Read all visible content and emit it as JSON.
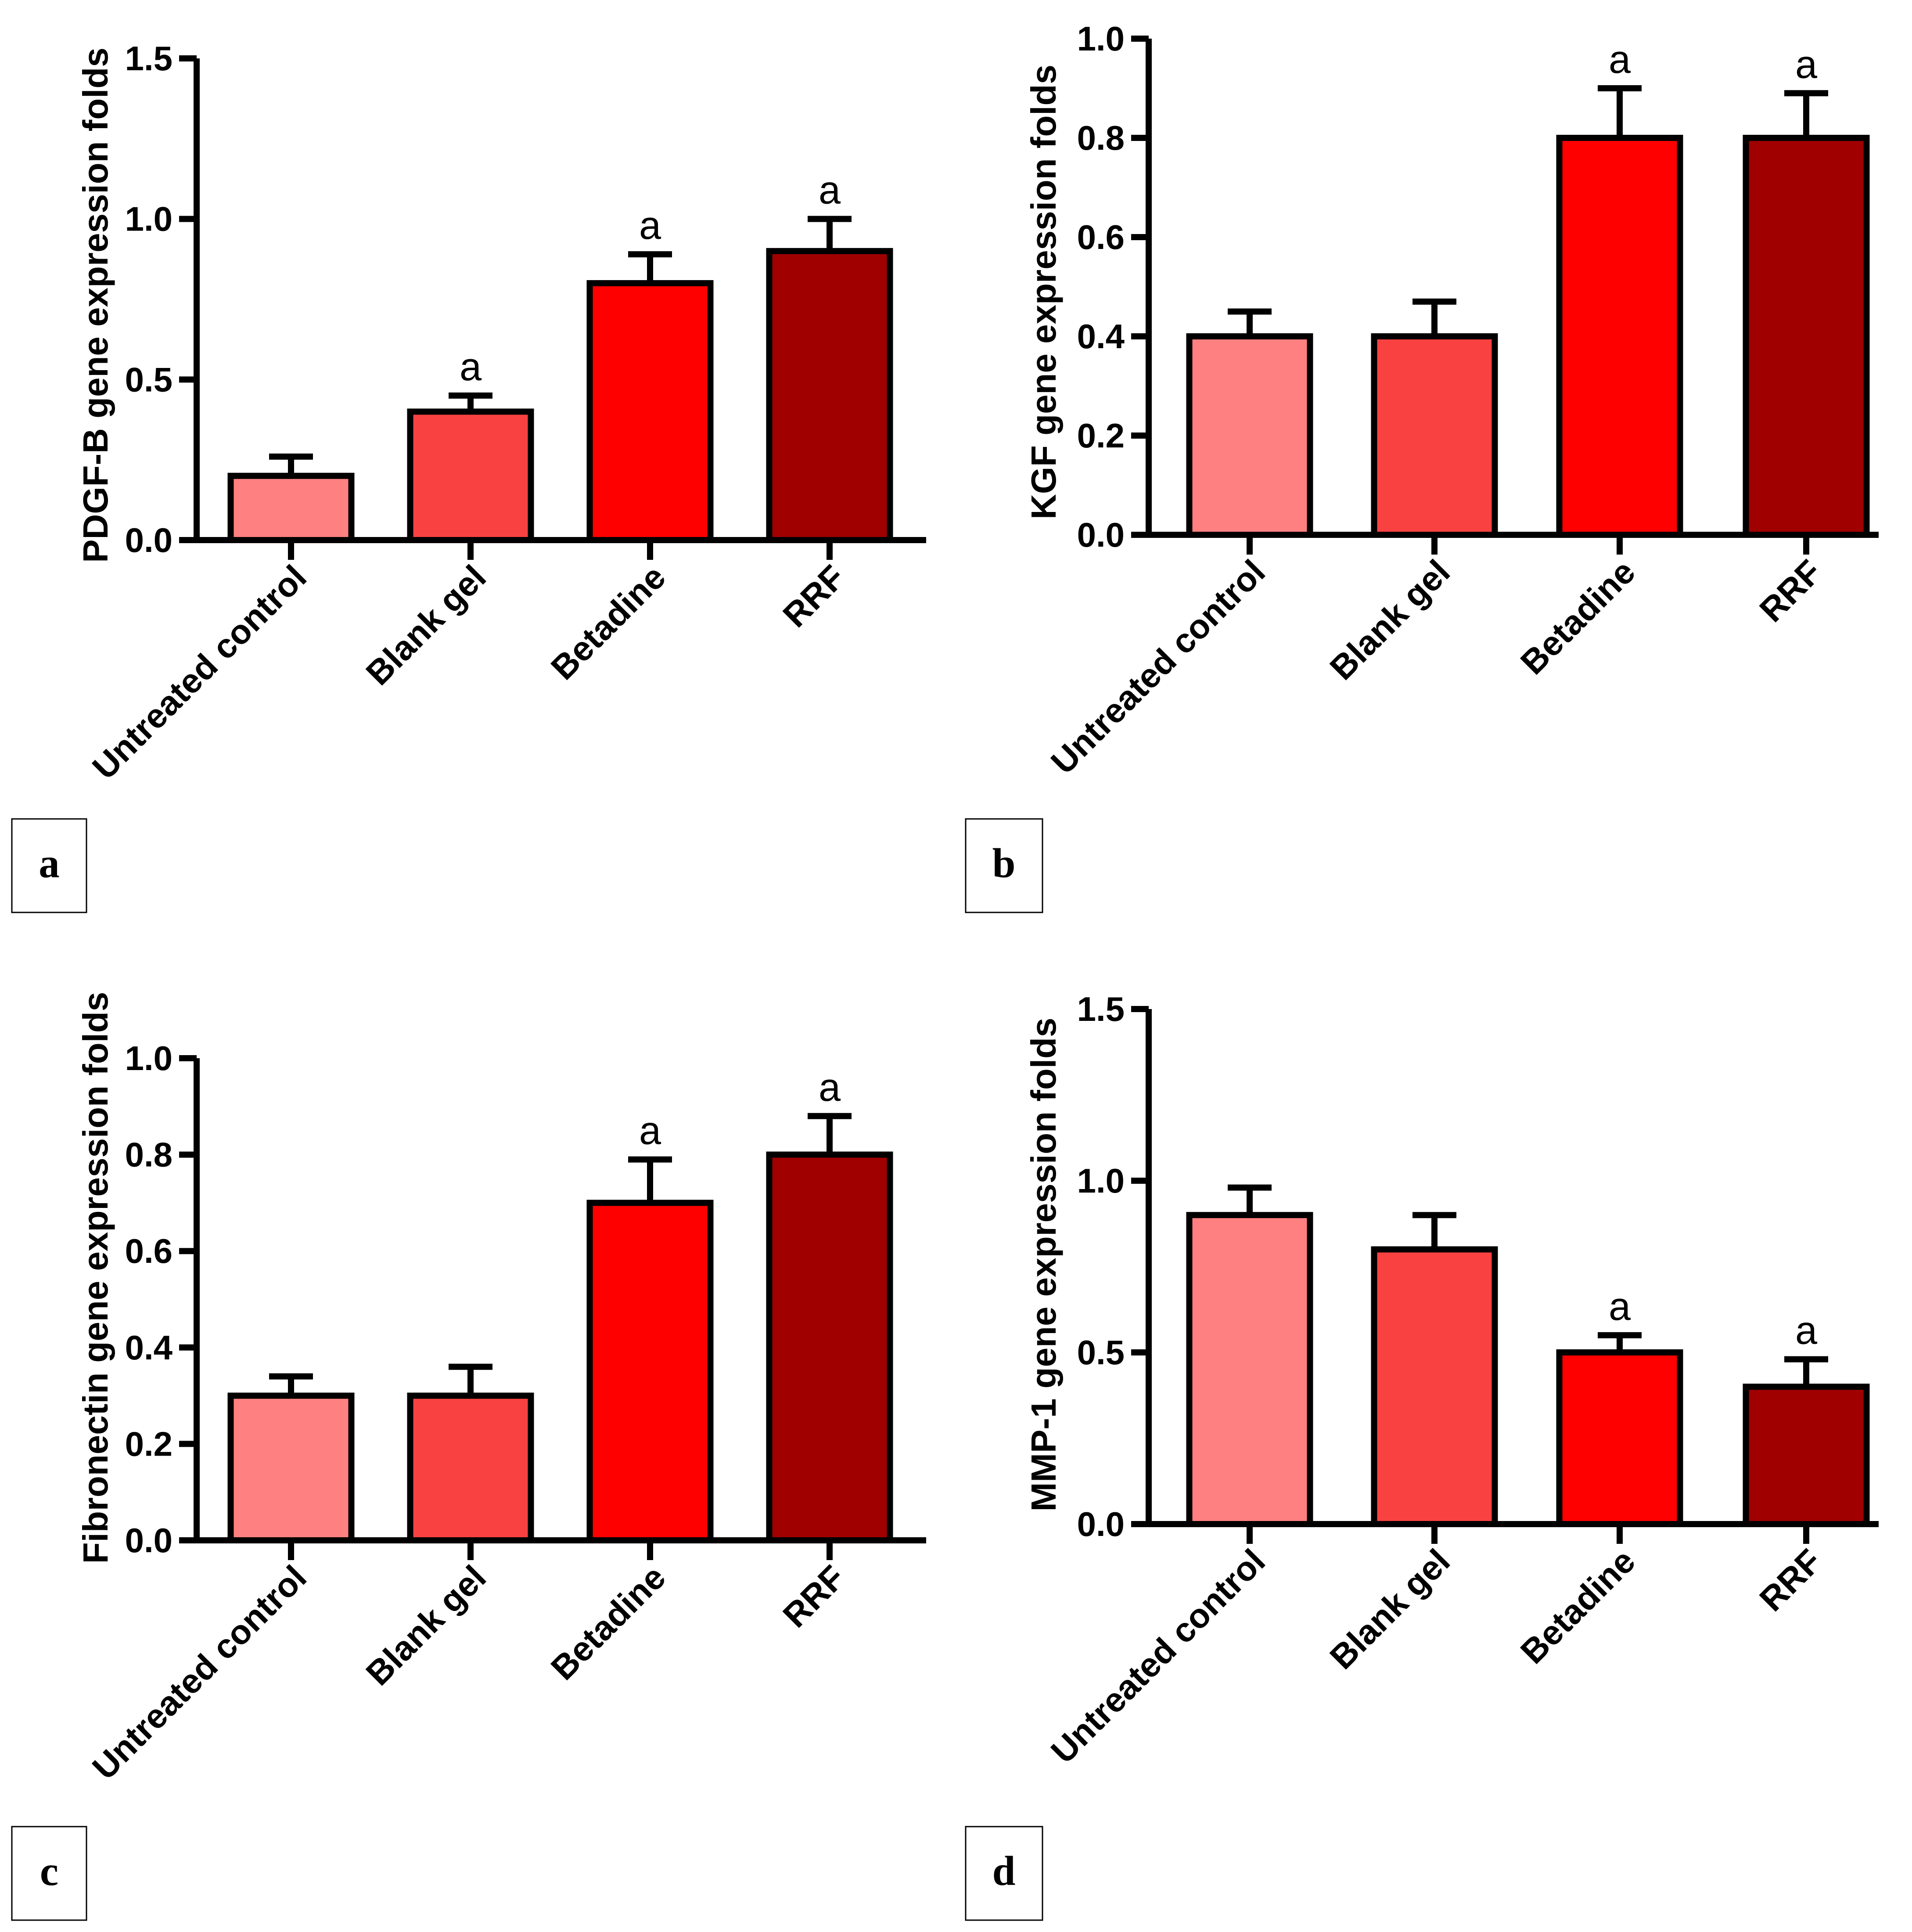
{
  "figure": {
    "colors": [
      "#ff8080",
      "#f94141",
      "#ff0000",
      "#a00000"
    ],
    "axis_color": "#000000"
  },
  "chart_data": [
    {
      "panel": "a",
      "type": "bar",
      "ylabel": "PDGF-B gene expression folds",
      "categories": [
        "Untreated control",
        "Blank gel",
        "Betadine",
        "RRF"
      ],
      "values": [
        0.2,
        0.4,
        0.8,
        0.9
      ],
      "errors": [
        0.06,
        0.05,
        0.09,
        0.1
      ],
      "annotations": [
        "",
        "a",
        "a",
        "a"
      ],
      "ylim": [
        0,
        1.5
      ],
      "yticks": [
        0,
        0.5,
        1.0,
        1.5
      ],
      "ytick_labels": [
        "0.0",
        "0.5",
        "1.0",
        "1.5"
      ]
    },
    {
      "panel": "b",
      "type": "bar",
      "ylabel": "KGF gene expression folds",
      "categories": [
        "Untreated control",
        "Blank gel",
        "Betadine",
        "RRF"
      ],
      "values": [
        0.4,
        0.4,
        0.8,
        0.8
      ],
      "errors": [
        0.05,
        0.07,
        0.1,
        0.09
      ],
      "annotations": [
        "",
        "",
        "a",
        "a"
      ],
      "ylim": [
        0,
        1.0
      ],
      "yticks": [
        0,
        0.2,
        0.4,
        0.6,
        0.8,
        1.0
      ],
      "ytick_labels": [
        "0.0",
        "0.2",
        "0.4",
        "0.6",
        "0.8",
        "1.0"
      ]
    },
    {
      "panel": "c",
      "type": "bar",
      "ylabel": "Fibronectin gene expression folds",
      "categories": [
        "Untreated control",
        "Blank gel",
        "Betadine",
        "RRF"
      ],
      "values": [
        0.3,
        0.3,
        0.7,
        0.8
      ],
      "errors": [
        0.04,
        0.06,
        0.09,
        0.08
      ],
      "annotations": [
        "",
        "",
        "a",
        "a"
      ],
      "ylim": [
        0,
        1.0
      ],
      "yticks": [
        0,
        0.2,
        0.4,
        0.6,
        0.8,
        1.0
      ],
      "ytick_labels": [
        "0.0",
        "0.2",
        "0.4",
        "0.6",
        "0.8",
        "1.0"
      ]
    },
    {
      "panel": "d",
      "type": "bar",
      "ylabel": "MMP-1 gene expression folds",
      "categories": [
        "Untreated control",
        "Blank gel",
        "Betadine",
        "RRF"
      ],
      "values": [
        0.9,
        0.8,
        0.5,
        0.4
      ],
      "errors": [
        0.08,
        0.1,
        0.05,
        0.08
      ],
      "annotations": [
        "",
        "",
        "a",
        "a"
      ],
      "ylim": [
        0,
        1.5
      ],
      "yticks": [
        0,
        0.5,
        1.0,
        1.5
      ],
      "ytick_labels": [
        "0.0",
        "0.5",
        "1.0",
        "1.5"
      ]
    }
  ]
}
